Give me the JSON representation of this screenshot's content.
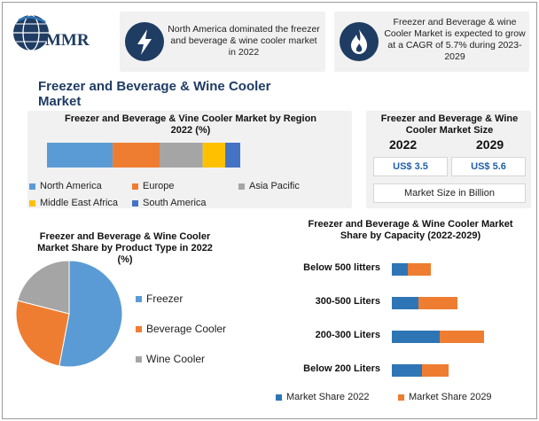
{
  "logo": {
    "text": "MMR"
  },
  "highlights": [
    {
      "text": "North America dominated the freezer and beverage & wine cooler market in 2022",
      "icon": "lightning-icon"
    },
    {
      "text": "Freezer and Beverage & wine Cooler Market is expected to grow at a CAGR of 5.7% during 2023-2029",
      "icon": "flame-icon"
    }
  ],
  "main_title": "Freezer and Beverage & Wine Cooler Market",
  "market_size": {
    "title": "Freezer and Beverage & Wine Cooler Market Size",
    "year_1": "2022",
    "year_2": "2029",
    "value_1": "US$ 3.5",
    "value_2": "US$ 5.6",
    "unit": "Market Size in Billion"
  },
  "colors": {
    "navy": "#1f3c63",
    "blue": "#3f7ebf",
    "orange": "#ee7d31",
    "gray": "#a5a5a5",
    "yellow": "#ffc000",
    "dark_blue": "#4472c4"
  },
  "chart_data": [
    {
      "type": "bar",
      "orientation": "horizontal-stacked",
      "title": "Freezer and Beverage & Vine Cooler Market by Region 2022 (%)",
      "series": [
        {
          "name": "North America",
          "values": [
            35
          ],
          "color": "#5b9bd5"
        },
        {
          "name": "Europe",
          "values": [
            25
          ],
          "color": "#ee7d31"
        },
        {
          "name": "Asia Pacific",
          "values": [
            23
          ],
          "color": "#a5a5a5"
        },
        {
          "name": "Middle East Africa",
          "values": [
            12
          ],
          "color": "#ffc000"
        },
        {
          "name": "South America",
          "values": [
            8
          ],
          "color": "#4472c4"
        }
      ],
      "legend": "bottom"
    },
    {
      "type": "pie",
      "title": "Freezer and Beverage & Wine Cooler Market Share by Product Type in 2022 (%)",
      "categories": [
        "Freezer",
        "Beverage Cooler",
        "Wine Cooler"
      ],
      "values": [
        53,
        26,
        21
      ],
      "colors": [
        "#5b9bd5",
        "#ee7d31",
        "#a5a5a5"
      ],
      "legend": "right"
    },
    {
      "type": "bar",
      "orientation": "horizontal-stacked",
      "title": "Freezer and Beverage & Wine Cooler Market Share by Capacity (2022-2029)",
      "categories": [
        "Below 500 litters",
        "300-500 Liters",
        "200-300 Liters",
        "Below 200 Liters"
      ],
      "series": [
        {
          "name": "Market Share 2022",
          "values": [
            18,
            30,
            54,
            34
          ],
          "color": "#2e75b6"
        },
        {
          "name": "Market Share 2029",
          "values": [
            26,
            44,
            50,
            30
          ],
          "color": "#ee7d31"
        }
      ],
      "legend": "bottom"
    }
  ]
}
